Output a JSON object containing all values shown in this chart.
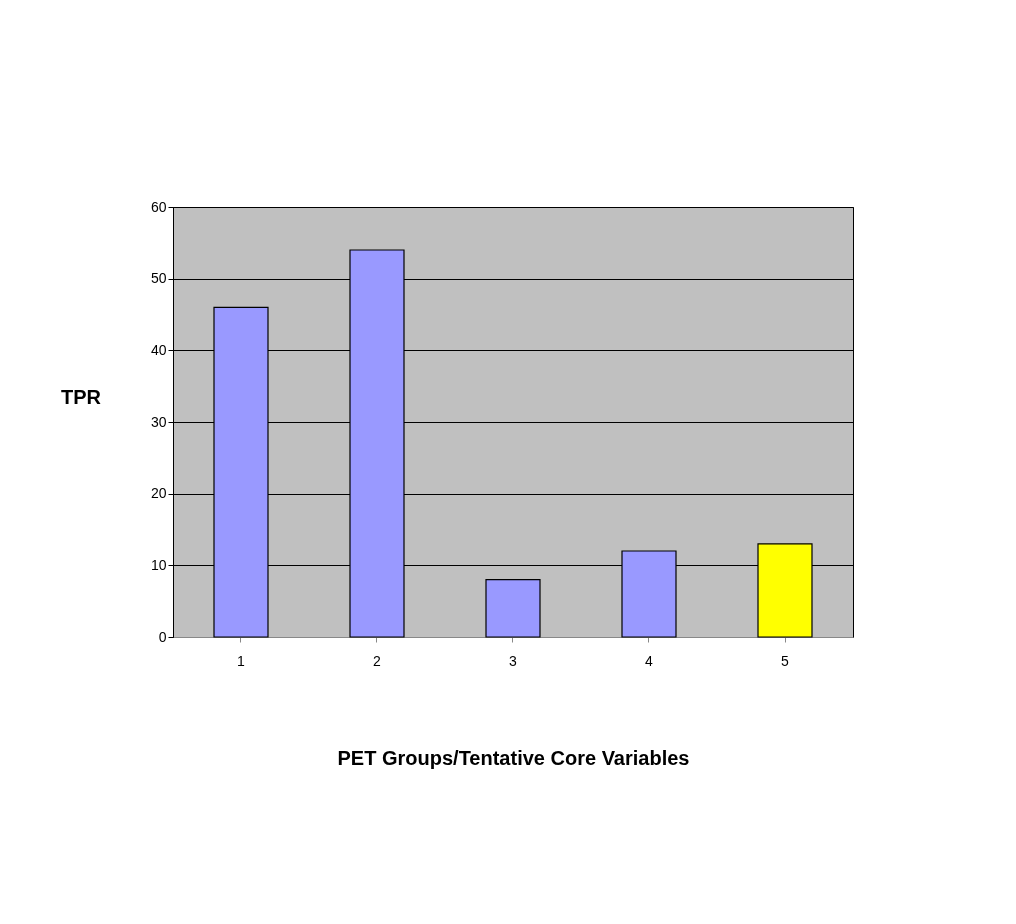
{
  "chart_data": {
    "type": "bar",
    "xlabel": "PET Groups/Tentative Core Variables",
    "ylabel": "TPR",
    "categories": [
      "1",
      "2",
      "3",
      "4",
      "5"
    ],
    "values": [
      46,
      54,
      8,
      12,
      13
    ],
    "colors": [
      "#9999ff",
      "#9999ff",
      "#9999ff",
      "#9999ff",
      "#ffff00"
    ],
    "ylim": [
      0,
      60
    ],
    "yticks": [
      0,
      10,
      20,
      30,
      40,
      50,
      60
    ],
    "grid": "y"
  }
}
